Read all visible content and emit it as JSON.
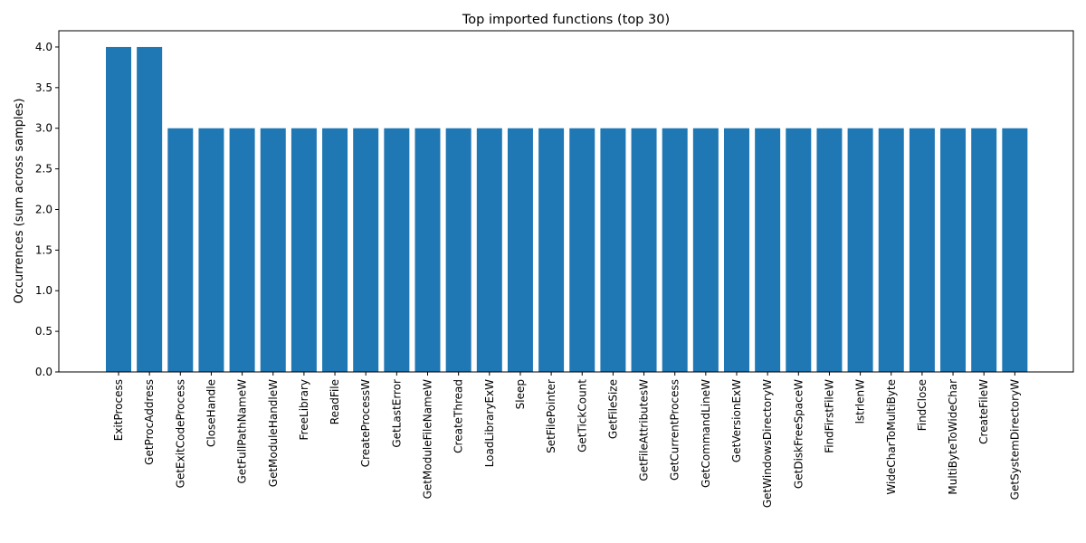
{
  "chart_data": {
    "type": "bar",
    "title": "Top imported functions (top 30)",
    "xlabel": "",
    "ylabel": "Occurrences (sum across samples)",
    "ylim": [
      0,
      4.2
    ],
    "yticks": [
      0.0,
      0.5,
      1.0,
      1.5,
      2.0,
      2.5,
      3.0,
      3.5,
      4.0
    ],
    "ytick_labels": [
      "0.0",
      "0.5",
      "1.0",
      "1.5",
      "2.0",
      "2.5",
      "3.0",
      "3.5",
      "4.0"
    ],
    "grid": false,
    "bar_color": "#1f77b4",
    "categories": [
      "ExitProcess",
      "GetProcAddress",
      "GetExitCodeProcess",
      "CloseHandle",
      "GetFullPathNameW",
      "GetModuleHandleW",
      "FreeLibrary",
      "ReadFile",
      "CreateProcessW",
      "GetLastError",
      "GetModuleFileNameW",
      "CreateThread",
      "LoadLibraryExW",
      "Sleep",
      "SetFilePointer",
      "GetTickCount",
      "GetFileSize",
      "GetFileAttributesW",
      "GetCurrentProcess",
      "GetCommandLineW",
      "GetVersionExW",
      "GetWindowsDirectoryW",
      "GetDiskFreeSpaceW",
      "FindFirstFileW",
      "lstrlenW",
      "WideCharToMultiByte",
      "FindClose",
      "MultiByteToWideChar",
      "CreateFileW",
      "GetSystemDirectoryW"
    ],
    "values": [
      4,
      4,
      3,
      3,
      3,
      3,
      3,
      3,
      3,
      3,
      3,
      3,
      3,
      3,
      3,
      3,
      3,
      3,
      3,
      3,
      3,
      3,
      3,
      3,
      3,
      3,
      3,
      3,
      3,
      3
    ]
  }
}
